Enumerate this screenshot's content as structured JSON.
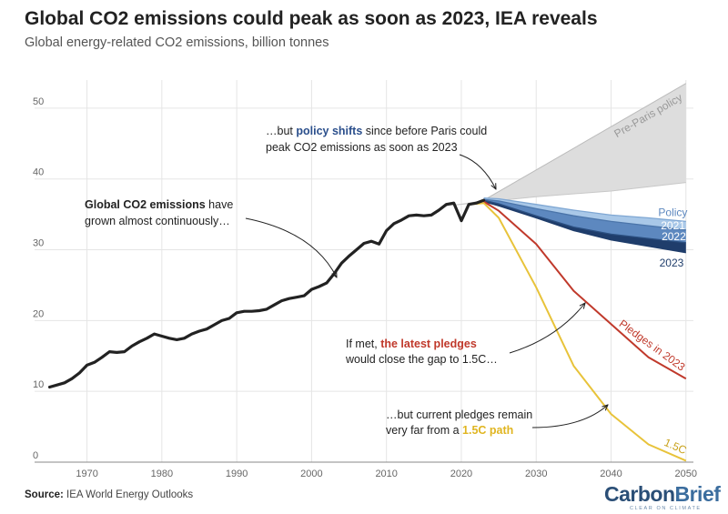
{
  "header": {
    "title": "Global CO2 emissions could peak as soon as 2023, IEA reveals",
    "subtitle": "Global energy-related CO2 emissions, billion tonnes"
  },
  "footer": {
    "source_label": "Source:",
    "source_text": "IEA World Energy Outlooks",
    "brand_carbon": "Carbon",
    "brand_brief": "Brief",
    "brand_tagline": "CLEAR ON CLIMATE"
  },
  "colors": {
    "historical": "#222222",
    "preparis_fill": "#dddddd",
    "policy_light": "#a9c8e8",
    "policy_mid": "#5d88bf",
    "policy_dark": "#1f3d6b",
    "pledges": "#c0392b",
    "one_point_five": "#e8c33a",
    "grid": "#e5e5e5"
  },
  "annotations": {
    "growth_bold": "Global CO2 emissions",
    "growth_rest": " have",
    "growth_line2": "grown almost continuously…",
    "policy_pre": "…but ",
    "policy_bold": "policy shifts",
    "policy_post": " since before Paris could",
    "policy_line2": "peak CO2 emissions as soon as 2023",
    "pledges_pre": "If met, ",
    "pledges_bold": "the latest pledges",
    "pledges_line2": "would close the gap to 1.5C…",
    "path_line1": "…but current pledges remain",
    "path_pre": "very far from a ",
    "path_bold": "1.5C path"
  },
  "chart_data": {
    "type": "line",
    "title": "Global CO2 emissions could peak as soon as 2023, IEA reveals",
    "ylabel": "Global energy-related CO2 emissions, billion tonnes",
    "xlim": [
      1963,
      2051
    ],
    "ylim": [
      0,
      55
    ],
    "x_ticks": [
      1970,
      1980,
      1990,
      2000,
      2010,
      2020,
      2030,
      2040,
      2050
    ],
    "y_ticks": [
      0,
      10,
      20,
      30,
      40,
      50
    ],
    "historical": {
      "name": "Global CO2 emissions",
      "x": [
        1965,
        1966,
        1967,
        1968,
        1969,
        1970,
        1971,
        1972,
        1973,
        1974,
        1975,
        1976,
        1977,
        1978,
        1979,
        1980,
        1981,
        1982,
        1983,
        1984,
        1985,
        1986,
        1987,
        1988,
        1989,
        1990,
        1991,
        1992,
        1993,
        1994,
        1995,
        1996,
        1997,
        1998,
        1999,
        2000,
        2001,
        2002,
        2003,
        2004,
        2005,
        2006,
        2007,
        2008,
        2009,
        2010,
        2011,
        2012,
        2013,
        2014,
        2015,
        2016,
        2017,
        2018,
        2019,
        2020,
        2021,
        2022,
        2023
      ],
      "y": [
        10.6,
        10.9,
        11.2,
        11.8,
        12.6,
        13.7,
        14.1,
        14.8,
        15.6,
        15.5,
        15.6,
        16.4,
        17.0,
        17.5,
        18.1,
        17.8,
        17.5,
        17.3,
        17.5,
        18.1,
        18.5,
        18.8,
        19.4,
        20.0,
        20.3,
        21.1,
        21.3,
        21.3,
        21.4,
        21.6,
        22.2,
        22.8,
        23.1,
        23.3,
        23.5,
        24.4,
        24.8,
        25.3,
        26.6,
        28.1,
        29.1,
        30.0,
        30.9,
        31.2,
        30.8,
        32.7,
        33.7,
        34.2,
        34.8,
        34.9,
        34.8,
        34.9,
        35.6,
        36.4,
        36.6,
        34.1,
        36.4,
        36.6,
        37.0
      ]
    },
    "series": [
      {
        "name": "Pre-Paris policy (upper)",
        "x": [
          2023,
          2050
        ],
        "y": [
          37.0,
          53.5
        ]
      },
      {
        "name": "Pre-Paris policy (lower)",
        "x": [
          2018,
          2030,
          2040,
          2050
        ],
        "y": [
          36.2,
          37.5,
          38.3,
          39.5
        ]
      },
      {
        "name": "Policy",
        "x": [
          2023,
          2025,
          2030,
          2035,
          2040,
          2045,
          2050
        ],
        "y": [
          37.3,
          37.2,
          36.4,
          35.6,
          34.9,
          34.5,
          34.0
        ]
      },
      {
        "name": "2021",
        "x": [
          2023,
          2025,
          2030,
          2035,
          2040,
          2045,
          2050
        ],
        "y": [
          37.1,
          36.9,
          35.8,
          34.8,
          34.0,
          33.4,
          32.8
        ]
      },
      {
        "name": "2022",
        "x": [
          2023,
          2025,
          2030,
          2035,
          2040,
          2045,
          2050
        ],
        "y": [
          37.0,
          36.5,
          34.8,
          33.2,
          32.2,
          31.6,
          31.0
        ]
      },
      {
        "name": "2023",
        "x": [
          2023,
          2025,
          2030,
          2035,
          2040,
          2045,
          2050
        ],
        "y": [
          36.8,
          36.2,
          34.5,
          32.7,
          31.4,
          30.5,
          29.6
        ]
      },
      {
        "name": "Pledges in 2023",
        "x": [
          2023,
          2025,
          2030,
          2035,
          2040,
          2045,
          2050
        ],
        "y": [
          36.8,
          35.5,
          30.8,
          24.2,
          19.5,
          14.8,
          11.8
        ]
      },
      {
        "name": "1.5C",
        "x": [
          2021,
          2023,
          2025,
          2030,
          2035,
          2040,
          2045,
          2050
        ],
        "y": [
          36.4,
          36.6,
          34.5,
          24.7,
          13.6,
          6.8,
          2.5,
          0.2
        ]
      }
    ],
    "series_labels": {
      "preparis": "Pre-Paris policy",
      "policy": "Policy",
      "y2021": "2021",
      "y2022": "2022",
      "y2023": "2023",
      "pledges": "Pledges in 2023",
      "onepointfive": "1.5C"
    }
  }
}
